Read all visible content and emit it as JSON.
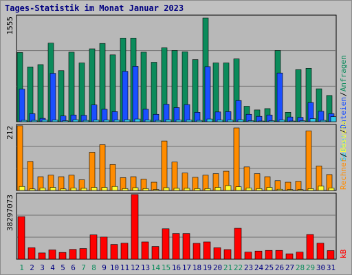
{
  "title": "Tages-Statistik im Monat Januar 2023",
  "colors": {
    "background": "#c0c0c0",
    "panel": "#b8b8b8",
    "title": "#000080",
    "anfragen": "#0b8b5b",
    "dateien": "#1a4fff",
    "seiten": "#2fc8e8",
    "besuche": "#ffff30",
    "rechner": "#ff8c00",
    "kb": "#ff0000",
    "weekend_day": "#0b8b5b",
    "weekday_day": "#000080"
  },
  "chart_data": [
    {
      "type": "bar",
      "name": "top-panel",
      "max_label": "1555",
      "ylim": [
        0,
        1555
      ],
      "legend": [
        {
          "name": "Anfragen",
          "color": "#0b8b5b"
        },
        {
          "name": "Dateien",
          "color": "#1a4fff"
        },
        {
          "name": "Seiten",
          "color": "#2fc8e8"
        }
      ],
      "categories": [
        "1",
        "2",
        "3",
        "4",
        "5",
        "6",
        "7",
        "8",
        "9",
        "10",
        "11",
        "12",
        "13",
        "14",
        "15",
        "16",
        "17",
        "18",
        "19",
        "20",
        "21",
        "22",
        "23",
        "24",
        "25",
        "26",
        "27",
        "28",
        "29",
        "30",
        "31"
      ],
      "series": [
        {
          "name": "Anfragen",
          "values": [
            1030,
            815,
            850,
            1170,
            760,
            1035,
            875,
            1085,
            1165,
            995,
            1245,
            1245,
            1035,
            885,
            1100,
            1060,
            1040,
            925,
            1545,
            875,
            875,
            935,
            230,
            175,
            195,
            1060,
            140,
            775,
            795,
            490,
            390
          ]
        },
        {
          "name": "Dateien",
          "values": [
            485,
            120,
            50,
            720,
            85,
            100,
            95,
            250,
            185,
            150,
            750,
            825,
            185,
            110,
            260,
            210,
            255,
            140,
            820,
            145,
            150,
            315,
            110,
            80,
            100,
            725,
            70,
            65,
            285,
            155,
            120
          ]
        },
        {
          "name": "Seiten",
          "values": [
            20,
            20,
            25,
            25,
            15,
            30,
            20,
            25,
            25,
            25,
            30,
            40,
            25,
            20,
            30,
            25,
            25,
            20,
            40,
            25,
            25,
            30,
            15,
            10,
            15,
            25,
            10,
            15,
            45,
            20,
            75
          ]
        }
      ]
    },
    {
      "type": "bar",
      "name": "middle-panel",
      "max_label": "212",
      "ylim": [
        0,
        212
      ],
      "legend": [
        {
          "name": "Besuche",
          "color": "#ffff30"
        },
        {
          "name": "Rechner",
          "color": "#ff8c00"
        }
      ],
      "categories": [
        "1",
        "2",
        "3",
        "4",
        "5",
        "6",
        "7",
        "8",
        "9",
        "10",
        "11",
        "12",
        "13",
        "14",
        "15",
        "16",
        "17",
        "18",
        "19",
        "20",
        "21",
        "22",
        "23",
        "24",
        "25",
        "26",
        "27",
        "28",
        "29",
        "30",
        "31"
      ],
      "series": [
        {
          "name": "Besuche",
          "values": [
            13,
            5,
            8,
            10,
            5,
            8,
            7,
            10,
            10,
            13,
            6,
            9,
            6,
            3,
            9,
            7,
            7,
            6,
            6,
            10,
            16,
            12,
            8,
            6,
            10,
            4,
            3,
            3,
            6,
            14,
            8
          ]
        },
        {
          "name": "Rechner",
          "values": [
            212,
            95,
            45,
            50,
            45,
            50,
            35,
            125,
            150,
            85,
            42,
            45,
            37,
            27,
            162,
            93,
            57,
            43,
            50,
            55,
            63,
            205,
            77,
            55,
            45,
            32,
            27,
            30,
            195,
            80,
            52
          ]
        }
      ]
    },
    {
      "type": "bar",
      "name": "bottom-panel",
      "max_label": "38297073",
      "ylim": [
        0,
        38297073
      ],
      "legend": [
        {
          "name": "kB",
          "color": "#ff0000"
        }
      ],
      "categories": [
        "1",
        "2",
        "3",
        "4",
        "5",
        "6",
        "7",
        "8",
        "9",
        "10",
        "11",
        "12",
        "13",
        "14",
        "15",
        "16",
        "17",
        "18",
        "19",
        "20",
        "21",
        "22",
        "23",
        "24",
        "25",
        "26",
        "27",
        "28",
        "29",
        "30",
        "31"
      ],
      "series": [
        {
          "name": "kB",
          "values": [
            25200000,
            6800000,
            3700000,
            5500000,
            4000000,
            5800000,
            6300000,
            14400000,
            13100000,
            8700000,
            9500000,
            38297073,
            10200000,
            7500000,
            18000000,
            15200000,
            15200000,
            9400000,
            10200000,
            6800000,
            5700000,
            18300000,
            4200000,
            4800000,
            5200000,
            5200000,
            3200000,
            4200000,
            14600000,
            9500000,
            5100000
          ]
        }
      ]
    }
  ],
  "days": [
    "1",
    "2",
    "3",
    "4",
    "5",
    "6",
    "7",
    "8",
    "9",
    "10",
    "11",
    "12",
    "13",
    "14",
    "15",
    "16",
    "17",
    "18",
    "19",
    "20",
    "21",
    "22",
    "23",
    "24",
    "25",
    "26",
    "27",
    "28",
    "29",
    "30",
    "31"
  ],
  "weekend_days": [
    "1",
    "7",
    "8",
    "14",
    "15",
    "21",
    "22",
    "28",
    "29"
  ]
}
